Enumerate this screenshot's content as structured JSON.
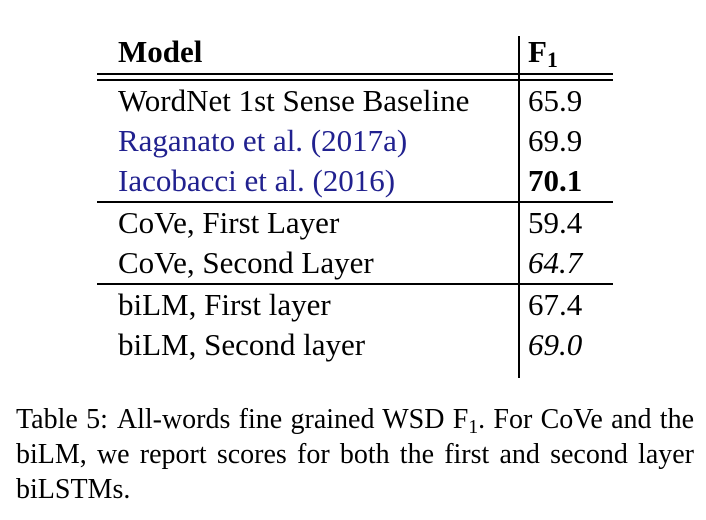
{
  "colors": {
    "background": "#ffffff",
    "text": "#000000",
    "rule": "#000000",
    "citation": "#21218f"
  },
  "table": {
    "header": {
      "model": "Model",
      "f_base": "F",
      "f_sub": "1"
    },
    "rows": [
      {
        "model": "WordNet 1st Sense Baseline",
        "f1": "65.9",
        "model_style": "normal",
        "f1_style": "normal"
      },
      {
        "model": "Raganato et al. (2017a)",
        "f1": "69.9",
        "model_style": "citation",
        "f1_style": "normal"
      },
      {
        "model": "Iacobacci et al. (2016)",
        "f1": "70.1",
        "model_style": "citation",
        "f1_style": "bold"
      },
      {
        "model": "CoVe, First Layer",
        "f1": "59.4",
        "model_style": "normal",
        "f1_style": "normal"
      },
      {
        "model": "CoVe, Second Layer",
        "f1": "64.7",
        "model_style": "normal",
        "f1_style": "italic"
      },
      {
        "model": "biLM, First layer",
        "f1": "67.4",
        "model_style": "normal",
        "f1_style": "normal"
      },
      {
        "model": "biLM, Second layer",
        "f1": "69.0",
        "model_style": "normal",
        "f1_style": "italic"
      }
    ]
  },
  "caption": {
    "label": "Table 5:",
    "before_sub": "All-words fine grained WSD F",
    "sub": "1",
    "after_sub": ". For CoVe and the biLM, we report scores for both the first and second layer biLSTMs."
  }
}
